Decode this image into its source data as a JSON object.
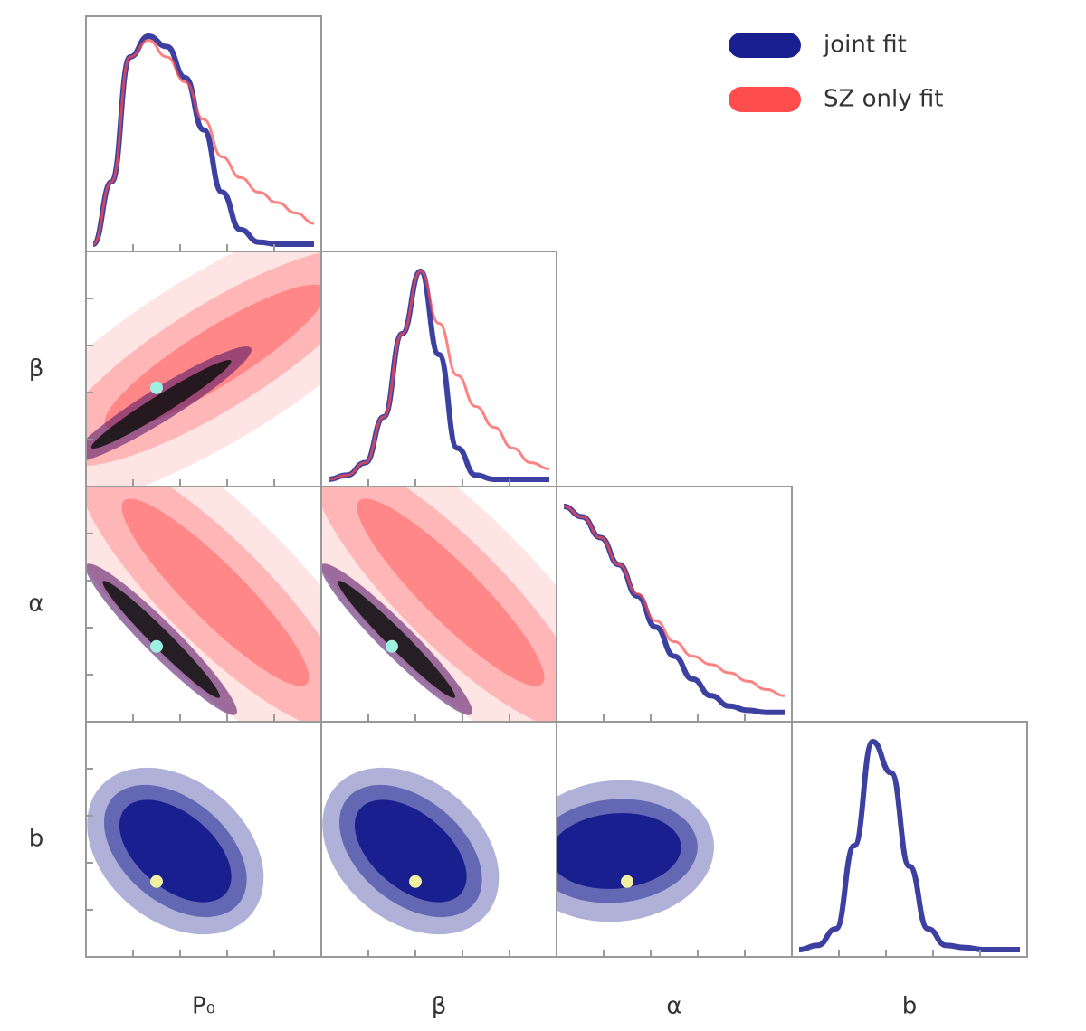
{
  "chart_data": {
    "type": "corner",
    "parameters": [
      "P₀",
      "β",
      "α",
      "b"
    ],
    "legend": "top-right",
    "series": [
      {
        "name": "joint fit",
        "color": "#1a1f8f",
        "diagonals": [
          [
            0,
            0.3,
            0.9,
            1,
            0.95,
            0.8,
            0.55,
            0.25,
            0.07,
            0.01,
            0,
            0,
            0
          ],
          [
            0,
            0.02,
            0.08,
            0.3,
            0.7,
            1,
            0.6,
            0.15,
            0.02,
            0,
            0,
            0,
            0
          ],
          [
            1,
            0.95,
            0.85,
            0.72,
            0.57,
            0.42,
            0.28,
            0.17,
            0.09,
            0.04,
            0.02,
            0.01,
            0.01
          ],
          [
            0,
            0.02,
            0.1,
            0.5,
            1,
            0.85,
            0.4,
            0.1,
            0.02,
            0.01,
            0,
            0,
            0
          ]
        ]
      },
      {
        "name": "SZ only fit",
        "color": "#ff4d4d",
        "diagonals": [
          [
            0,
            0.3,
            0.9,
            0.98,
            0.9,
            0.78,
            0.6,
            0.42,
            0.32,
            0.25,
            0.2,
            0.15,
            0.1
          ],
          [
            0,
            0.02,
            0.08,
            0.3,
            0.7,
            1,
            0.75,
            0.5,
            0.35,
            0.25,
            0.15,
            0.08,
            0.05
          ],
          [
            1,
            0.95,
            0.85,
            0.72,
            0.58,
            0.45,
            0.35,
            0.28,
            0.24,
            0.2,
            0.16,
            0.12,
            0.09
          ]
        ]
      }
    ]
  }
}
